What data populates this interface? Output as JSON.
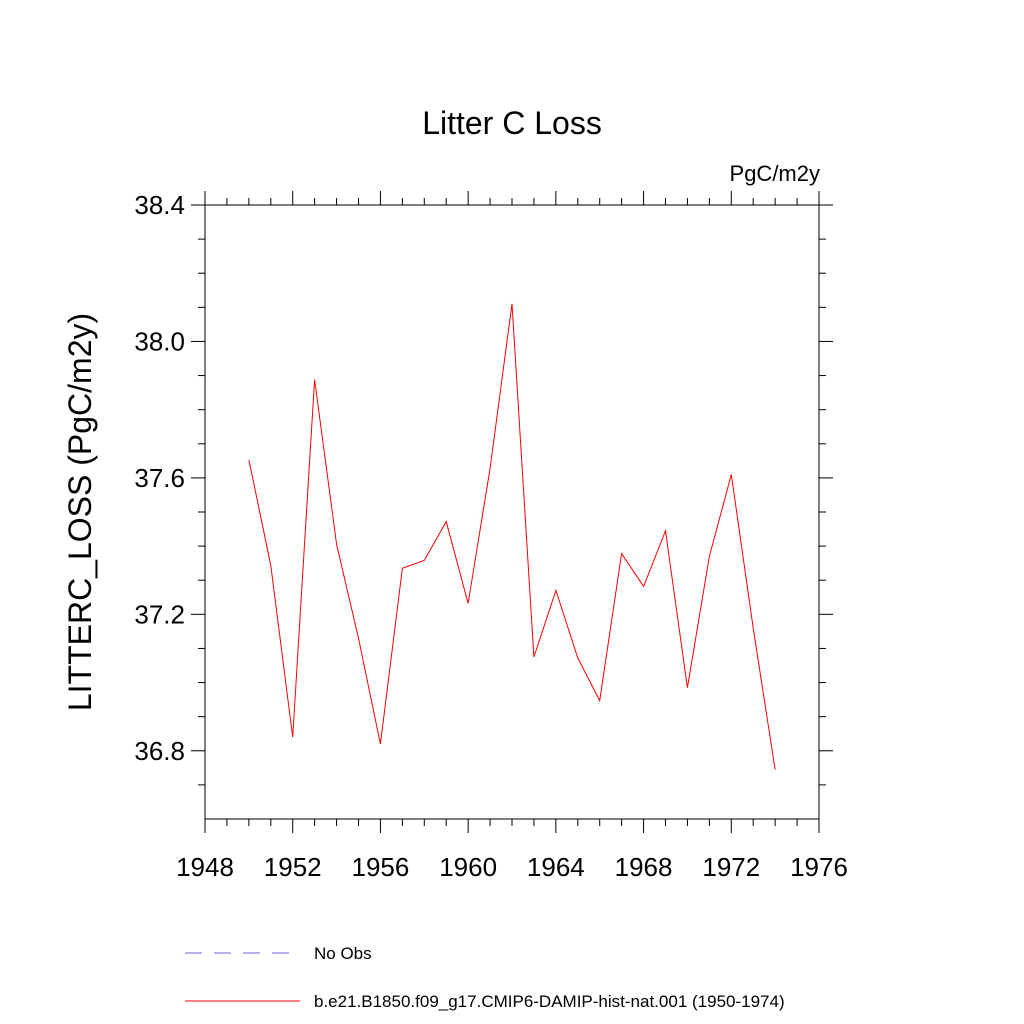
{
  "chart_data": {
    "type": "line",
    "title": "Litter C Loss",
    "units_label": "PgC/m2y",
    "ylabel": "LITTERC_LOSS  (PgC/m2y)",
    "xlabel": "",
    "xlim": [
      1948,
      1976
    ],
    "ylim": [
      36.6,
      38.4
    ],
    "x_ticks": [
      1948,
      1952,
      1956,
      1960,
      1964,
      1968,
      1972,
      1976
    ],
    "y_ticks": [
      "36.8",
      "37.2",
      "37.6",
      "38.0",
      "38.4"
    ],
    "grid": false,
    "legend_placement": "bottom",
    "legend": [
      {
        "name": "No Obs",
        "color": "#6b5fd6",
        "style": "dashed"
      },
      {
        "name": "b.e21.B1850.f09_g17.CMIP6-DAMIP-hist-nat.001 (1950-1974)",
        "color": "#ff0000",
        "style": "solid"
      }
    ],
    "series": [
      {
        "name": "b.e21.B1850.f09_g17.CMIP6-DAMIP-hist-nat.001 (1950-1974)",
        "color": "#ff0000",
        "x": [
          1950,
          1951,
          1952,
          1953,
          1954,
          1955,
          1956,
          1957,
          1958,
          1959,
          1960,
          1961,
          1962,
          1963,
          1964,
          1965,
          1966,
          1967,
          1968,
          1969,
          1970,
          1971,
          1972,
          1973,
          1974
        ],
        "y": [
          37.653,
          37.343,
          36.84,
          37.888,
          37.405,
          37.13,
          36.82,
          37.335,
          37.358,
          37.472,
          37.232,
          37.628,
          38.11,
          37.075,
          37.27,
          37.072,
          36.947,
          37.378,
          37.282,
          37.445,
          36.985,
          37.37,
          37.61,
          37.16,
          36.745
        ]
      }
    ]
  }
}
